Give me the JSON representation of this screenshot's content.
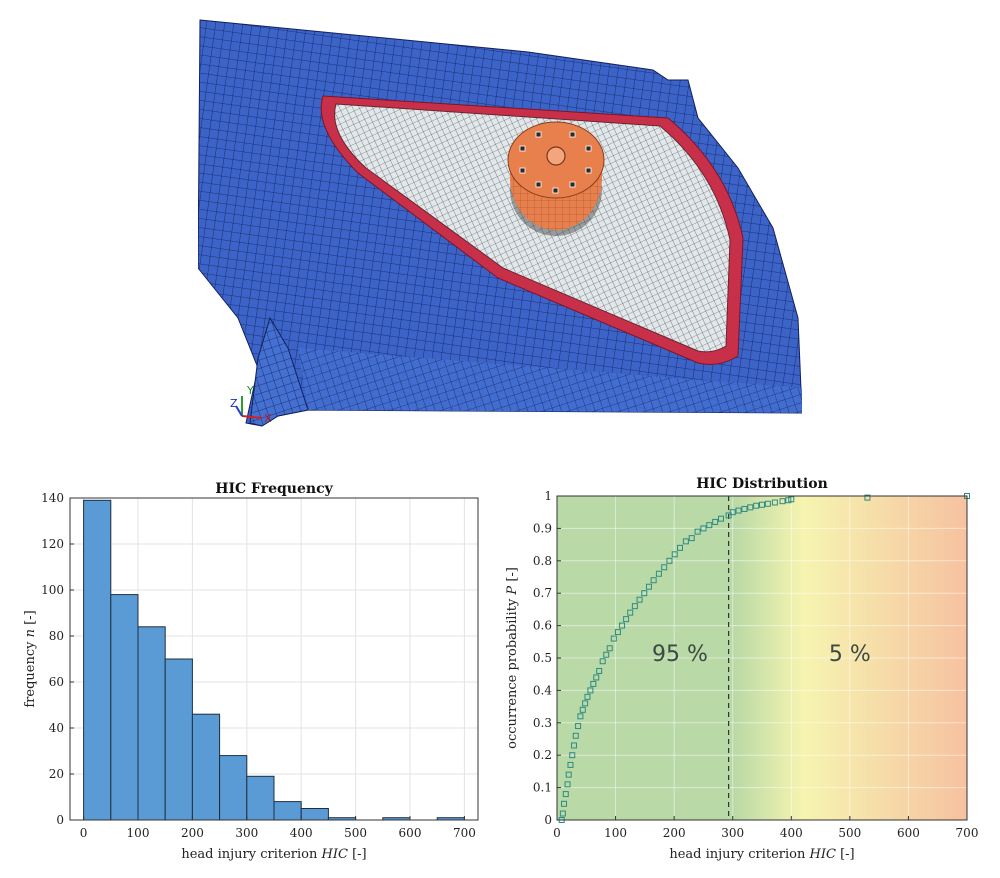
{
  "figure_top": {
    "axis_triad": [
      "Y",
      "Z",
      "X"
    ],
    "colors": {
      "mesh_blue": "#3b63c8",
      "mesh_line": "#12205a",
      "seal_red": "#c8304a",
      "window_mesh": "#dfe5e9",
      "impactor_orange": "#e8804e"
    }
  },
  "chart_data": [
    {
      "type": "bar",
      "title": "HIC Frequency",
      "xlabel": "head injury criterion",
      "xlabel_symbol": "HIC",
      "xlabel_unit": "[-]",
      "ylabel": "frequency",
      "ylabel_symbol": "n",
      "ylabel_unit": "[-]",
      "bin_width": 50,
      "bin_edges": [
        0,
        50,
        100,
        150,
        200,
        250,
        300,
        350,
        400,
        450,
        500,
        550,
        600,
        650,
        700
      ],
      "values": [
        139,
        98,
        84,
        70,
        46,
        28,
        19,
        8,
        5,
        1,
        0,
        1,
        0,
        1
      ],
      "xlim": [
        -25,
        725
      ],
      "ylim": [
        0,
        140
      ],
      "xticks": [
        "0",
        "100",
        "200",
        "300",
        "400",
        "500",
        "600",
        "700"
      ],
      "yticks": [
        "0",
        "20",
        "40",
        "60",
        "80",
        "100",
        "120",
        "140"
      ],
      "grid": true,
      "bar_color": "#5b9bd5"
    },
    {
      "type": "scatter",
      "title": "HIC Distribution",
      "xlabel": "head injury criterion",
      "xlabel_symbol": "HIC",
      "xlabel_unit": "[-]",
      "ylabel": "occurrence probability",
      "ylabel_symbol": "P",
      "ylabel_unit": "[-]",
      "xlim": [
        0,
        700
      ],
      "ylim": [
        0,
        1
      ],
      "xticks": [
        "0",
        "100",
        "200",
        "300",
        "400",
        "500",
        "600",
        "700"
      ],
      "yticks": [
        "0",
        "0.1",
        "0.2",
        "0.3",
        "0.4",
        "0.5",
        "0.6",
        "0.7",
        "0.8",
        "0.9",
        "1"
      ],
      "grid": true,
      "marker": "square",
      "marker_color": "#2e8b84",
      "threshold_x": 293,
      "regions": [
        {
          "label": "95 %",
          "x": 210,
          "y": 0.49
        },
        {
          "label": "5 %",
          "x": 500,
          "y": 0.49
        }
      ],
      "background_colors": [
        "#b9d9a6",
        "#f6f4b0",
        "#f6c2a0"
      ],
      "x": [
        8,
        10,
        12,
        15,
        18,
        20,
        23,
        26,
        29,
        32,
        36,
        40,
        44,
        48,
        52,
        57,
        62,
        67,
        72,
        78,
        84,
        90,
        97,
        104,
        111,
        118,
        125,
        133,
        141,
        149,
        157,
        165,
        174,
        183,
        192,
        201,
        210,
        220,
        230,
        240,
        250,
        260,
        270,
        280,
        293,
        300,
        310,
        320,
        330,
        340,
        350,
        360,
        372,
        385,
        395,
        400,
        530,
        700
      ],
      "y": [
        0.0,
        0.02,
        0.05,
        0.08,
        0.11,
        0.14,
        0.17,
        0.2,
        0.23,
        0.26,
        0.29,
        0.32,
        0.34,
        0.36,
        0.38,
        0.4,
        0.42,
        0.44,
        0.46,
        0.49,
        0.51,
        0.53,
        0.56,
        0.58,
        0.6,
        0.62,
        0.64,
        0.66,
        0.68,
        0.7,
        0.72,
        0.74,
        0.76,
        0.78,
        0.8,
        0.82,
        0.84,
        0.86,
        0.87,
        0.89,
        0.9,
        0.91,
        0.92,
        0.93,
        0.94,
        0.95,
        0.955,
        0.96,
        0.965,
        0.97,
        0.973,
        0.976,
        0.98,
        0.984,
        0.987,
        0.99,
        0.995,
        1.0
      ]
    }
  ]
}
